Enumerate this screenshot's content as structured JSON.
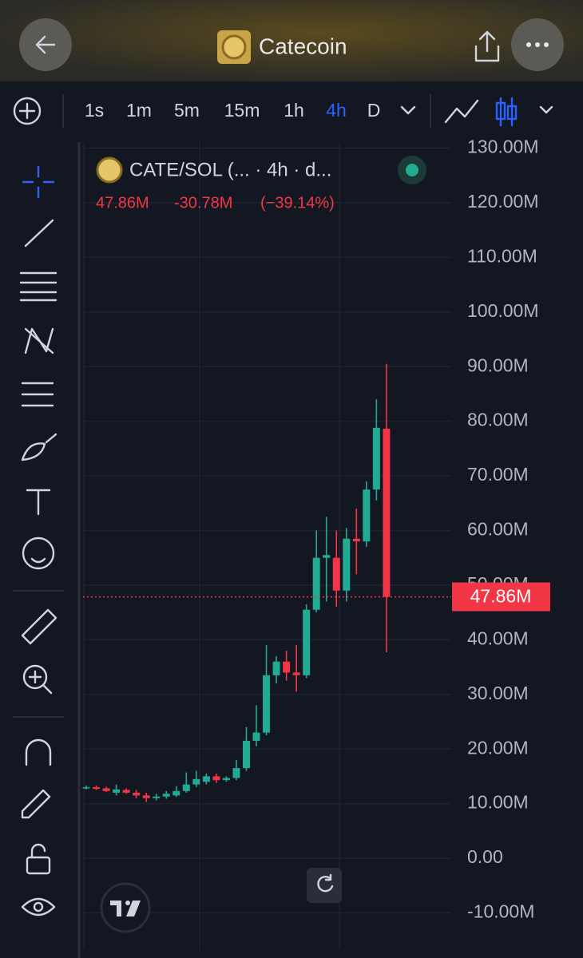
{
  "app_title": "Catecoin",
  "timeframes": [
    "1s",
    "1m",
    "5m",
    "15m",
    "1h",
    "4h",
    "D"
  ],
  "selected_timeframe": "4h",
  "chart_data": {
    "type": "candlestick",
    "title": "CATE/SOL (... · 4h · d...",
    "last_value": "47.86M",
    "change": "-30.78M",
    "change_percent": "(−39.14%)",
    "up_color": "#22ab94",
    "down_color": "#f23645",
    "grid": true,
    "ylim": [
      -16.8,
      131.1
    ],
    "yticks": [
      {
        "value": -10,
        "label": "-10.00M"
      },
      {
        "value": 0,
        "label": "0.00"
      },
      {
        "value": 10,
        "label": "10.00M"
      },
      {
        "value": 20,
        "label": "20.00M"
      },
      {
        "value": 30,
        "label": "30.00M"
      },
      {
        "value": 40,
        "label": "40.00M"
      },
      {
        "value": 50,
        "label": "50.00M"
      },
      {
        "value": 60,
        "label": "60.00M"
      },
      {
        "value": 70,
        "label": "70.00M"
      },
      {
        "value": 80,
        "label": "80.00M"
      },
      {
        "value": 90,
        "label": "90.00M"
      },
      {
        "value": 100,
        "label": "100.00M"
      },
      {
        "value": 110,
        "label": "110.00M"
      },
      {
        "value": 120,
        "label": "120.00M"
      },
      {
        "value": 130,
        "label": "130.00M"
      }
    ],
    "current_price": {
      "value": 47.86,
      "label": "47.86M"
    },
    "open": [
      12.8,
      13.0,
      12.8,
      12.0,
      12.5,
      12.0,
      11.5,
      11.0,
      11.3,
      11.5,
      12.3,
      13.5,
      14.0,
      15.0,
      14.3,
      14.7,
      16.5,
      21.5,
      23.0,
      33.5,
      36.0,
      34.0,
      33.5,
      45.5,
      55.0,
      55.0,
      49.0,
      58.5,
      58.0,
      67.5,
      78.64
    ],
    "high": [
      13.3,
      13.3,
      13.1,
      13.5,
      12.8,
      12.5,
      12.0,
      11.8,
      12.3,
      13.2,
      15.7,
      16.0,
      15.5,
      15.5,
      15.0,
      18.0,
      24.0,
      28.0,
      39.0,
      37.0,
      38.0,
      39.0,
      46.5,
      60.0,
      62.5,
      60.0,
      60.5,
      64.0,
      69.0,
      84.0,
      90.5
    ],
    "low": [
      12.6,
      12.5,
      12.1,
      11.5,
      11.8,
      11.0,
      10.3,
      10.6,
      10.9,
      11.2,
      12.0,
      13.0,
      13.5,
      13.8,
      14.0,
      14.3,
      16.0,
      20.5,
      22.5,
      32.0,
      32.5,
      30.5,
      33.0,
      45.0,
      47.0,
      46.0,
      47.0,
      52.0,
      57.0,
      65.5,
      37.7
    ],
    "close": [
      13.0,
      12.7,
      12.3,
      12.6,
      12.0,
      11.5,
      11.0,
      11.3,
      11.8,
      12.3,
      13.5,
      14.5,
      15.0,
      14.3,
      14.7,
      16.5,
      21.5,
      23.0,
      33.5,
      36.0,
      34.0,
      33.5,
      45.5,
      55.0,
      55.5,
      49.0,
      58.5,
      58.0,
      67.5,
      78.8,
      47.86
    ]
  }
}
